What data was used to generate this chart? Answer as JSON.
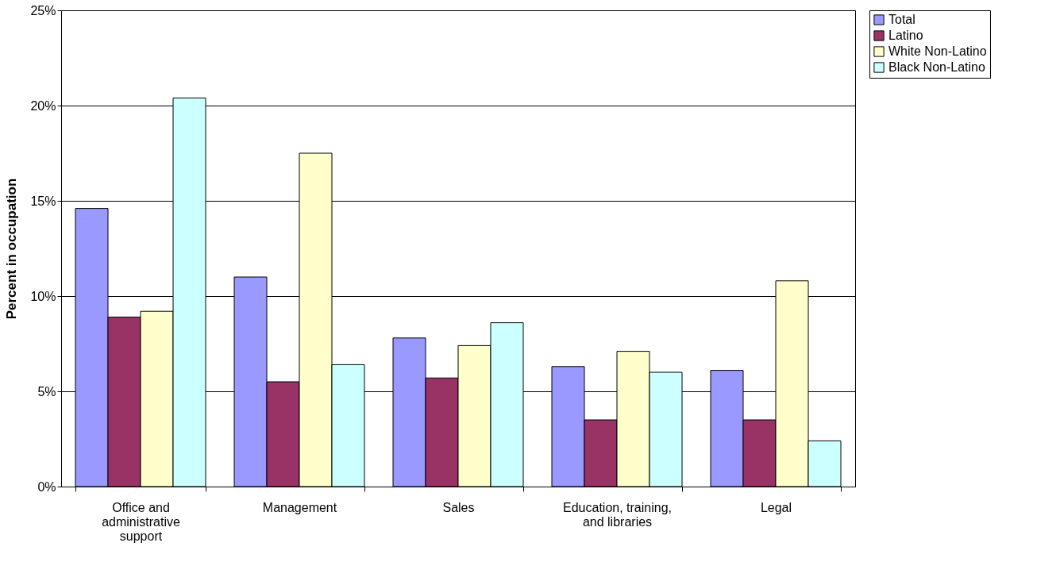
{
  "chart_data": {
    "type": "bar",
    "ylabel": "Percent in occupation",
    "categories": [
      "Office and administrative support",
      "Management",
      "Sales",
      "Education, training, and libraries",
      "Legal"
    ],
    "series": [
      {
        "name": "Total",
        "color": "#9999ff",
        "values": [
          14.6,
          11.0,
          7.8,
          6.3,
          6.1
        ]
      },
      {
        "name": "Latino",
        "color": "#993366",
        "values": [
          8.9,
          5.5,
          5.7,
          3.5,
          3.5
        ]
      },
      {
        "name": "White Non-Latino",
        "color": "#ffffcc",
        "values": [
          9.2,
          17.5,
          7.4,
          7.1,
          10.8
        ]
      },
      {
        "name": "Black Non-Latino",
        "color": "#ccffff",
        "values": [
          20.4,
          6.4,
          8.6,
          6.0,
          2.4
        ]
      }
    ],
    "ylim": [
      0,
      25
    ],
    "yticks": [
      {
        "value": 0,
        "label": "0%"
      },
      {
        "value": 5,
        "label": "5%"
      },
      {
        "value": 10,
        "label": "10%"
      },
      {
        "value": 15,
        "label": "15%"
      },
      {
        "value": 20,
        "label": "20%"
      },
      {
        "value": 25,
        "label": "25%"
      }
    ],
    "grid": "y",
    "legend": "right"
  }
}
